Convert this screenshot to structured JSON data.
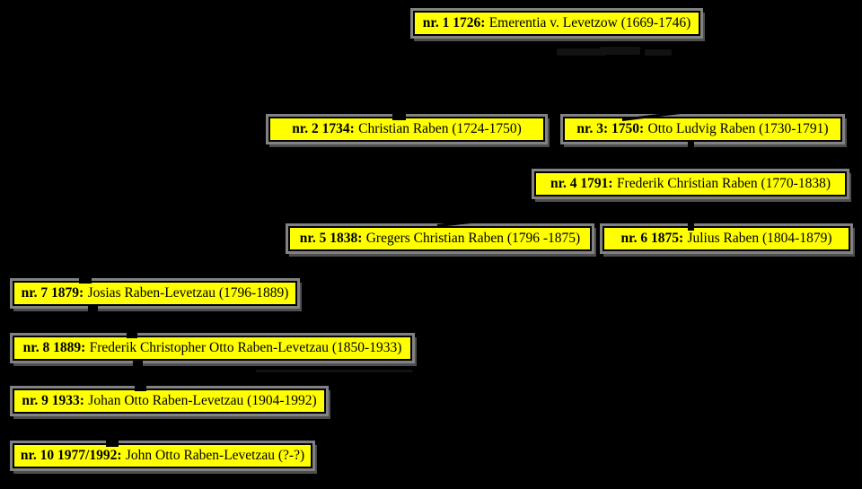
{
  "diagram": {
    "type": "family-tree",
    "colors": {
      "background": "#000000",
      "node_fill": "#ffff00",
      "node_border": "#000000",
      "node_frame_gray": "#828282",
      "text": "#000000"
    }
  },
  "nodes": [
    {
      "bold": "nr. 1 1726:",
      "rest": "Emerentia v. Levetzow (1669-1746)"
    },
    {
      "bold": "nr. 2 1734:",
      "rest": "Christian Raben (1724-1750)"
    },
    {
      "bold": "nr. 3: 1750:",
      "rest": "Otto Ludvig Raben (1730-1791)"
    },
    {
      "bold": "nr. 4 1791:",
      "rest": "Frederik Christian Raben (1770-1838)"
    },
    {
      "bold": "nr. 5 1838:",
      "rest": "Gregers Christian Raben (1796 -1875)"
    },
    {
      "bold": "nr. 6 1875:",
      "rest": "Julius Raben (1804-1879)"
    },
    {
      "bold": "nr. 7 1879:",
      "rest": "Josias Raben-Levetzau (1796-1889)"
    },
    {
      "bold": "nr. 8 1889:",
      "rest": "Frederik Christopher Otto Raben-Levetzau (1850-1933)"
    },
    {
      "bold": "nr. 9 1933:",
      "rest": "Johan Otto Raben-Levetzau (1904-1992)"
    },
    {
      "bold": "nr. 10 1977/1992:",
      "rest": "John Otto Raben-Levetzau (?-?)"
    }
  ]
}
